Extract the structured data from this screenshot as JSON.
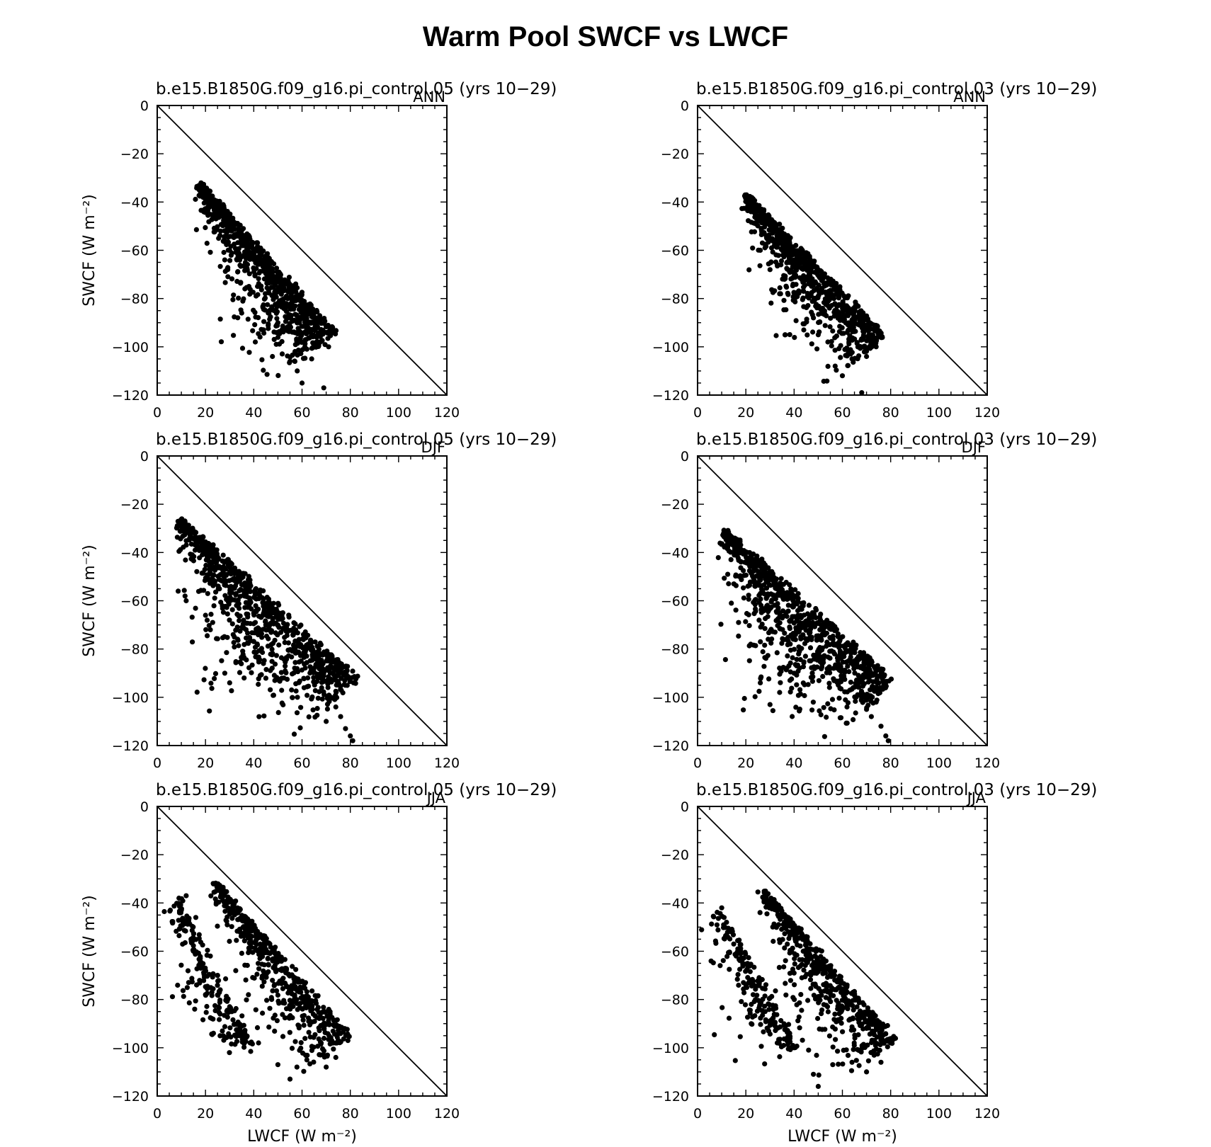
{
  "figure": {
    "title": "Warm Pool SWCF vs LWCF"
  },
  "chart_data": [
    {
      "type": "scatter",
      "title": "b.e15.B1850G.f09_g16.pi_control.05 (yrs 10−29)",
      "season": "ANN",
      "xlabel": "",
      "ylabel": "SWCF (W m⁻²)",
      "xlim": [
        0,
        120
      ],
      "ylim": [
        -120,
        0
      ],
      "xticks": [
        "0",
        "20",
        "40",
        "60",
        "80",
        "100",
        "120"
      ],
      "yticks": [
        "0",
        "−20",
        "−40",
        "−60",
        "−80",
        "−100",
        "−120"
      ],
      "reference_line": {
        "from": [
          0,
          0
        ],
        "to": [
          120,
          -120
        ]
      },
      "cloud": {
        "start": [
          16,
          -34
        ],
        "end": [
          72,
          -96
        ],
        "upper_offset": 3,
        "width_start": 3,
        "width_mid": 22,
        "width_end": 24,
        "count": 850,
        "outliers": [
          [
            33,
            -64
          ],
          [
            35,
            -86
          ],
          [
            38,
            -75
          ],
          [
            44,
            -93
          ],
          [
            55,
            -106
          ],
          [
            58,
            -110
          ],
          [
            60,
            -115
          ],
          [
            62,
            -101
          ],
          [
            64,
            -105
          ],
          [
            69,
            -117
          ],
          [
            71,
            -100
          ],
          [
            66,
            -98
          ],
          [
            46,
            -86
          ],
          [
            50,
            -90
          ],
          [
            28,
            -64
          ],
          [
            30,
            -60
          ]
        ]
      }
    },
    {
      "type": "scatter",
      "title": "b.e15.B1850G.f09_g16.pi_control.03 (yrs 10−29)",
      "season": "ANN",
      "xlabel": "",
      "ylabel": "",
      "xlim": [
        0,
        120
      ],
      "ylim": [
        -120,
        0
      ],
      "xticks": [
        "0",
        "20",
        "40",
        "60",
        "80",
        "100",
        "120"
      ],
      "yticks": [
        "0",
        "−20",
        "−40",
        "−60",
        "−80",
        "−100",
        "−120"
      ],
      "reference_line": {
        "from": [
          0,
          0
        ],
        "to": [
          120,
          -120
        ]
      },
      "cloud": {
        "start": [
          18,
          -39
        ],
        "end": [
          76,
          -97
        ],
        "upper_offset": 3,
        "width_start": 3,
        "width_mid": 22,
        "width_end": 24,
        "count": 800,
        "outliers": [
          [
            26,
            -60
          ],
          [
            30,
            -68
          ],
          [
            34,
            -78
          ],
          [
            44,
            -93
          ],
          [
            54,
            -98
          ],
          [
            57,
            -108
          ],
          [
            60,
            -112
          ],
          [
            64,
            -105
          ],
          [
            68,
            -119
          ],
          [
            70,
            -104
          ],
          [
            74,
            -100
          ],
          [
            36,
            -72
          ],
          [
            48,
            -88
          ],
          [
            50,
            -95
          ]
        ]
      }
    },
    {
      "type": "scatter",
      "title": "b.e15.B1850G.f09_g16.pi_control.05 (yrs 10−29)",
      "season": "DJF",
      "xlabel": "",
      "ylabel": "SWCF (W m⁻²)",
      "xlim": [
        0,
        120
      ],
      "ylim": [
        -120,
        0
      ],
      "xticks": [
        "0",
        "20",
        "40",
        "60",
        "80",
        "100",
        "120"
      ],
      "yticks": [
        "0",
        "−20",
        "−40",
        "−60",
        "−80",
        "−100",
        "−120"
      ],
      "reference_line": {
        "from": [
          0,
          0
        ],
        "to": [
          120,
          -120
        ]
      },
      "cloud": {
        "start": [
          8,
          -28
        ],
        "end": [
          81,
          -94
        ],
        "upper_offset": 3,
        "width_start": 4,
        "width_mid": 36,
        "width_end": 22,
        "count": 900,
        "outliers": [
          [
            12,
            -60
          ],
          [
            20,
            -66
          ],
          [
            22,
            -72
          ],
          [
            28,
            -90
          ],
          [
            30,
            -94
          ],
          [
            36,
            -92
          ],
          [
            44,
            -86
          ],
          [
            74,
            -104
          ],
          [
            76,
            -108
          ],
          [
            78,
            -113
          ],
          [
            80,
            -116
          ],
          [
            81,
            -118
          ],
          [
            70,
            -110
          ],
          [
            72,
            -100
          ]
        ]
      }
    },
    {
      "type": "scatter",
      "title": "b.e15.B1850G.f09_g16.pi_control.03 (yrs 10−29)",
      "season": "DJF",
      "xlabel": "",
      "ylabel": "",
      "xlim": [
        0,
        120
      ],
      "ylim": [
        -120,
        0
      ],
      "xticks": [
        "0",
        "20",
        "40",
        "60",
        "80",
        "100",
        "120"
      ],
      "yticks": [
        "0",
        "−20",
        "−40",
        "−60",
        "−80",
        "−100",
        "−120"
      ],
      "reference_line": {
        "from": [
          0,
          0
        ],
        "to": [
          120,
          -120
        ]
      },
      "cloud": {
        "start": [
          10,
          -33
        ],
        "end": [
          79,
          -95
        ],
        "upper_offset": 3,
        "width_start": 4,
        "width_mid": 36,
        "width_end": 22,
        "count": 900,
        "outliers": [
          [
            14,
            -61
          ],
          [
            17,
            -69
          ],
          [
            22,
            -78
          ],
          [
            26,
            -94
          ],
          [
            30,
            -103
          ],
          [
            34,
            -98
          ],
          [
            40,
            -90
          ],
          [
            70,
            -105
          ],
          [
            72,
            -108
          ],
          [
            76,
            -112
          ],
          [
            78,
            -116
          ],
          [
            79,
            -118
          ],
          [
            74,
            -102
          ]
        ]
      }
    },
    {
      "type": "scatter",
      "title": "b.e15.B1850G.f09_g16.pi_control.05 (yrs 10−29)",
      "season": "JJA",
      "xlabel": "LWCF (W m⁻²)",
      "ylabel": "SWCF (W m⁻²)",
      "xlim": [
        0,
        120
      ],
      "ylim": [
        -120,
        0
      ],
      "xticks": [
        "0",
        "20",
        "40",
        "60",
        "80",
        "100",
        "120"
      ],
      "yticks": [
        "0",
        "−20",
        "−40",
        "−60",
        "−80",
        "−100",
        "−120"
      ],
      "reference_line": {
        "from": [
          0,
          0
        ],
        "to": [
          120,
          -120
        ]
      },
      "cloud": {
        "start": [
          22,
          -33
        ],
        "end": [
          78,
          -96
        ],
        "upper_offset": 3,
        "width_start": 3,
        "width_mid": 20,
        "width_end": 22,
        "count": 520,
        "outliers": [
          [
            9,
            -38
          ],
          [
            10,
            -43
          ],
          [
            12,
            -48
          ],
          [
            15,
            -60
          ],
          [
            18,
            -67
          ],
          [
            20,
            -78
          ],
          [
            25,
            -70
          ],
          [
            30,
            -83
          ],
          [
            34,
            -95
          ],
          [
            42,
            -98
          ],
          [
            50,
            -107
          ],
          [
            55,
            -113
          ],
          [
            62,
            -105
          ],
          [
            70,
            -108
          ],
          [
            74,
            -104
          ],
          [
            79,
            -97
          ],
          [
            12,
            -37
          ],
          [
            14,
            -55
          ],
          [
            16,
            -46
          ],
          [
            22,
            -62
          ]
        ]
      },
      "extra_cloud": {
        "start": [
          9,
          -38
        ],
        "end": [
          40,
          -100
        ],
        "upper_offset": 0,
        "width_start": 6,
        "width_mid": 18,
        "width_end": 10,
        "count": 200
      }
    },
    {
      "type": "scatter",
      "title": "b.e15.B1850G.f09_g16.pi_control.03 (yrs 10−29)",
      "season": "JJA",
      "xlabel": "LWCF (W m⁻²)",
      "ylabel": "",
      "xlim": [
        0,
        120
      ],
      "ylim": [
        -120,
        0
      ],
      "xticks": [
        "0",
        "20",
        "40",
        "60",
        "80",
        "100",
        "120"
      ],
      "yticks": [
        "0",
        "−20",
        "−40",
        "−60",
        "−80",
        "−100",
        "−120"
      ],
      "reference_line": {
        "from": [
          0,
          0
        ],
        "to": [
          120,
          -120
        ]
      },
      "cloud": {
        "start": [
          25,
          -36
        ],
        "end": [
          80,
          -98
        ],
        "upper_offset": 3,
        "width_start": 3,
        "width_mid": 20,
        "width_end": 22,
        "count": 520,
        "outliers": [
          [
            10,
            -42
          ],
          [
            11,
            -46
          ],
          [
            14,
            -52
          ],
          [
            16,
            -62
          ],
          [
            19,
            -73
          ],
          [
            24,
            -80
          ],
          [
            28,
            -85
          ],
          [
            33,
            -98
          ],
          [
            40,
            -100
          ],
          [
            46,
            -101
          ],
          [
            48,
            -111
          ],
          [
            50,
            -116
          ],
          [
            56,
            -107
          ],
          [
            64,
            -106
          ],
          [
            70,
            -110
          ],
          [
            76,
            -106
          ],
          [
            80,
            -98
          ],
          [
            12,
            -48
          ],
          [
            15,
            -57
          ]
        ]
      },
      "extra_cloud": {
        "start": [
          10,
          -42
        ],
        "end": [
          42,
          -100
        ],
        "upper_offset": 0,
        "width_start": 6,
        "width_mid": 18,
        "width_end": 10,
        "count": 200
      }
    }
  ]
}
